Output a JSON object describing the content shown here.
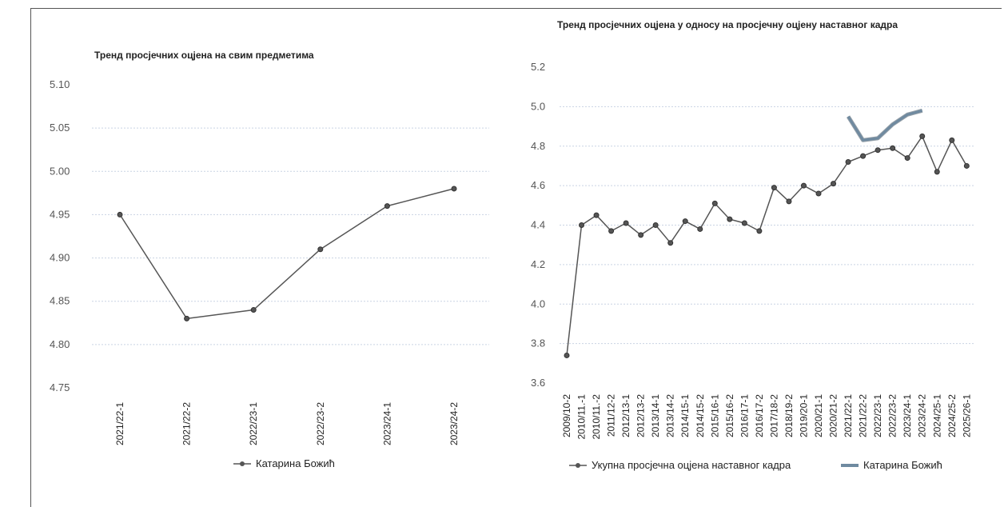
{
  "chart_data": [
    {
      "type": "line",
      "title": "Тренд просјечних оцјена на свим предметима",
      "categories": [
        "2021/22-1",
        "2021/22-2",
        "2022/23-1",
        "2022/23-2",
        "2023/24-1",
        "2023/24-2"
      ],
      "series": [
        {
          "name": "Катарина Божић",
          "values": [
            4.95,
            4.83,
            4.84,
            4.91,
            4.96,
            4.98
          ],
          "color": "#555555"
        }
      ],
      "ylim": [
        4.75,
        5.1
      ],
      "yticks": [
        "5.10",
        "5.05",
        "5.00",
        "4.95",
        "4.90",
        "4.85",
        "4.80",
        "4.75"
      ],
      "grid": true,
      "legend_position": "bottom"
    },
    {
      "type": "line",
      "title": "Тренд просјечних оцјена у односу на просјечну оцјену наставног кадра",
      "categories": [
        "2009/10-2",
        "2010/11.-1",
        "2010/11.-2",
        "2011/12-2",
        "2012/13-1",
        "2012/13-2",
        "2013/14-1",
        "2013/14-2",
        "2014/15-1",
        "2014/15-2",
        "2015/16-1",
        "2015/16-2",
        "2016/17-1",
        "2016/17-2",
        "2017/18-2",
        "2018/19-2",
        "2019/20-1",
        "2020/21-1",
        "2020/21-2",
        "2021/22-1",
        "2021/22-2",
        "2022/23-1",
        "2022/23-2",
        "2023/24-1",
        "2023/24-2",
        "2024/25-1",
        "2024/25-2",
        "2025/26-1"
      ],
      "series": [
        {
          "name": "Укупна просјечна оцјена наставног кадра",
          "values": [
            3.74,
            4.4,
            4.45,
            4.37,
            4.41,
            4.35,
            4.4,
            4.31,
            4.42,
            4.38,
            4.51,
            4.43,
            4.41,
            4.37,
            4.59,
            4.52,
            4.6,
            4.56,
            4.61,
            4.72,
            4.75,
            4.78,
            4.79,
            4.74,
            4.85,
            4.67,
            4.83,
            4.7
          ],
          "color": "#555555"
        },
        {
          "name": "Катарина Божић",
          "values": [
            null,
            null,
            null,
            null,
            null,
            null,
            null,
            null,
            null,
            null,
            null,
            null,
            null,
            null,
            null,
            null,
            null,
            null,
            null,
            4.95,
            4.83,
            4.84,
            4.91,
            4.96,
            4.98,
            null,
            null,
            null
          ],
          "color": "#6f8aa0"
        }
      ],
      "ylim": [
        3.6,
        5.2
      ],
      "yticks": [
        "5.2",
        "5.0",
        "4.8",
        "4.6",
        "4.4",
        "4.2",
        "4.0",
        "3.8",
        "3.6"
      ],
      "grid": true,
      "legend_position": "bottom"
    }
  ]
}
